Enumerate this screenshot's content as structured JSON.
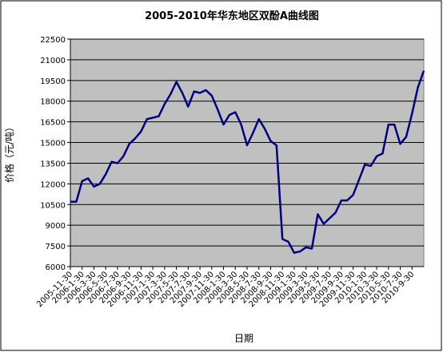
{
  "chart_data": {
    "type": "line",
    "title": "2005-2010年华东地区双酚A曲线图",
    "y_label": "价格（元/吨）",
    "x_label": "日期",
    "categories": [
      "2005-11-30",
      null,
      "2006-1-30",
      null,
      "2006-3-30",
      null,
      "2006-5-30",
      null,
      "2006-7-30",
      null,
      "2006-9-30",
      null,
      "2006-11-30",
      null,
      "2007-1-30",
      null,
      "2007-3-30",
      null,
      "2007-5-30",
      null,
      "2007-7-30",
      null,
      "2007-9-30",
      null,
      "2007-11-30",
      null,
      "2008-1-30",
      null,
      "2008-3-30",
      null,
      "2008-5-30",
      null,
      "2008-7-30",
      null,
      "2008-9-30",
      null,
      "2008-11-30",
      null,
      "2009-1-30",
      null,
      "2009-3-30",
      null,
      "2009-5-30",
      null,
      "2009-7-30",
      null,
      "2009-9-30",
      null,
      "2009-11-30",
      null,
      "2010-1-30",
      null,
      "2010-3-30",
      null,
      "2010-5-30",
      null,
      "2010-7-30",
      null,
      "2010-9-30",
      null,
      null
    ],
    "series": [
      {
        "name": "价格",
        "color": "#000080",
        "values": [
          10700,
          10700,
          12200,
          12400,
          11800,
          12000,
          12700,
          13600,
          13500,
          14000,
          14900,
          15300,
          15800,
          16700,
          16800,
          16900,
          17800,
          18500,
          19400,
          18600,
          17600,
          18700,
          18600,
          18800,
          18400,
          17400,
          16300,
          17000,
          17200,
          16300,
          14800,
          15700,
          16700,
          16000,
          15100,
          14800,
          8000,
          7800,
          7000,
          7100,
          7400,
          7300,
          9800,
          9100,
          9500,
          9900,
          10800,
          10800,
          11200,
          12300,
          13400,
          13300,
          14000,
          14200,
          16300,
          16300,
          14900,
          15400,
          17100,
          19000,
          20200
        ]
      }
    ],
    "ylim": [
      6000,
      22500
    ],
    "yticks": [
      6000,
      7500,
      9000,
      10500,
      12000,
      13500,
      15000,
      16500,
      18000,
      19500,
      21000,
      22500
    ],
    "grid": true,
    "plot_background": "#c0c0c0"
  }
}
